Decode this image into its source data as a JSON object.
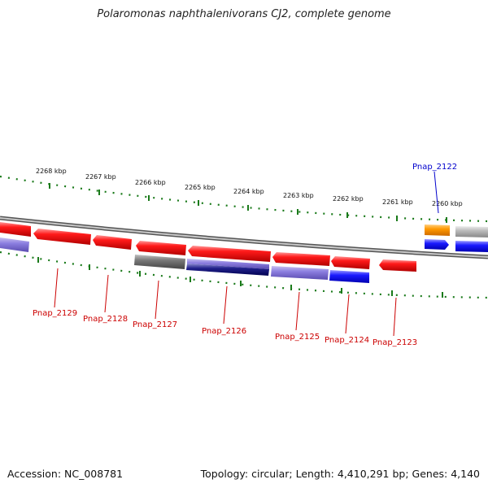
{
  "title": "Polaromonas naphthalenivorans CJ2, complete genome",
  "footer": {
    "accession": "Accession: NC_008781",
    "info": "Topology: circular; Length: 4,410,291 bp; Genes: 4,140"
  },
  "colors": {
    "axis_ticks": "#1a7a1a",
    "backbone": "#888888",
    "label_red": "#cc0000",
    "label_blue": "#0000cc"
  },
  "kbp_labels": [
    "2268 kbp",
    "2267 kbp",
    "2266 kbp",
    "2265 kbp",
    "2264 kbp",
    "2263 kbp",
    "2262 kbp",
    "2261 kbp",
    "2260 kbp"
  ],
  "genes": [
    {
      "name": "Pnap_2129",
      "color": "#cc0000"
    },
    {
      "name": "Pnap_2128",
      "color": "#cc0000"
    },
    {
      "name": "Pnap_2127",
      "color": "#cc0000"
    },
    {
      "name": "Pnap_2126",
      "color": "#cc0000"
    },
    {
      "name": "Pnap_2125",
      "color": "#cc0000"
    },
    {
      "name": "Pnap_2124",
      "color": "#cc0000"
    },
    {
      "name": "Pnap_2123",
      "color": "#cc0000"
    },
    {
      "name": "Pnap_2122",
      "color": "#0000cc"
    }
  ]
}
